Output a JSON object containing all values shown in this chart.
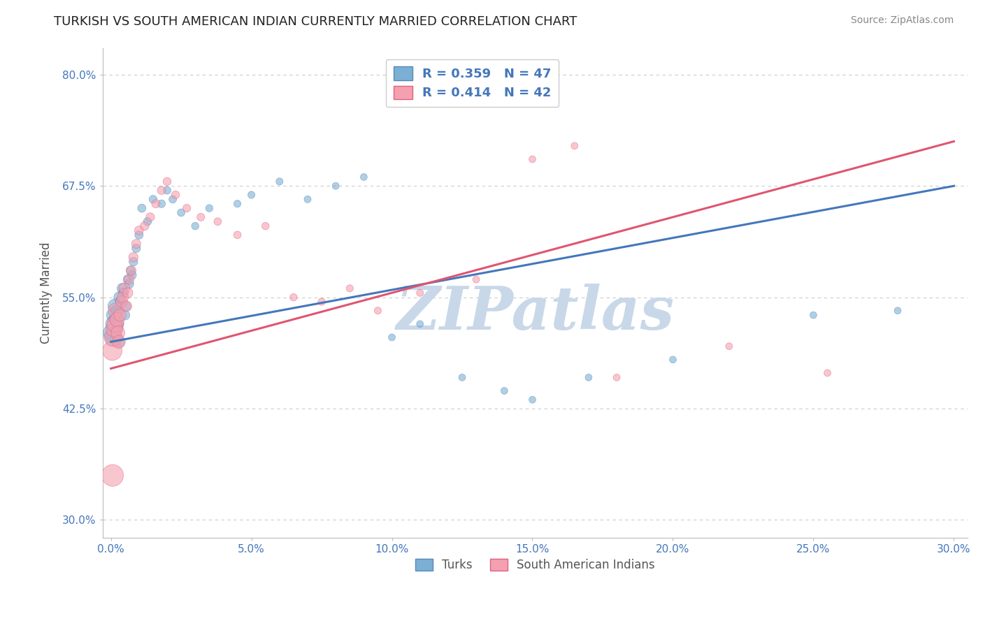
{
  "title": "TURKISH VS SOUTH AMERICAN INDIAN CURRENTLY MARRIED CORRELATION CHART",
  "source": "Source: ZipAtlas.com",
  "xlabel_vals": [
    0.0,
    5.0,
    10.0,
    15.0,
    20.0,
    25.0,
    30.0
  ],
  "ylabel_vals": [
    30.0,
    42.5,
    55.0,
    67.5,
    80.0
  ],
  "xlim": [
    -0.3,
    30.5
  ],
  "ylim": [
    28.0,
    83.0
  ],
  "ylabel": "Currently Married",
  "blue_label": "Turks",
  "pink_label": "South American Indians",
  "blue_R": 0.359,
  "blue_N": 47,
  "pink_R": 0.414,
  "pink_N": 42,
  "blue_color": "#7BAFD4",
  "pink_color": "#F4A0B0",
  "blue_edge_color": "#5588BB",
  "pink_edge_color": "#E06080",
  "blue_line_color": "#4477BB",
  "pink_line_color": "#E05570",
  "watermark": "ZIPatlas",
  "watermark_color": "#C8D8E8",
  "background_color": "#FFFFFF",
  "blue_line_x": [
    0.0,
    30.0
  ],
  "blue_line_y": [
    50.0,
    67.5
  ],
  "pink_line_x": [
    0.0,
    30.0
  ],
  "pink_line_y": [
    47.0,
    72.5
  ],
  "blue_scatter_x": [
    0.05,
    0.08,
    0.1,
    0.12,
    0.15,
    0.18,
    0.2,
    0.22,
    0.25,
    0.28,
    0.3,
    0.35,
    0.4,
    0.45,
    0.5,
    0.55,
    0.6,
    0.65,
    0.7,
    0.75,
    0.8,
    0.9,
    1.0,
    1.1,
    1.3,
    1.5,
    1.8,
    2.0,
    2.2,
    2.5,
    3.0,
    3.5,
    4.5,
    5.0,
    6.0,
    7.0,
    8.0,
    9.0,
    10.0,
    11.0,
    12.5,
    14.0,
    15.0,
    17.0,
    20.0,
    25.0,
    28.0
  ],
  "blue_scatter_y": [
    51.0,
    50.5,
    52.0,
    53.0,
    54.0,
    52.5,
    51.5,
    53.5,
    52.0,
    50.0,
    55.0,
    54.5,
    56.0,
    55.5,
    53.0,
    54.0,
    57.0,
    56.5,
    58.0,
    57.5,
    59.0,
    60.5,
    62.0,
    65.0,
    63.5,
    66.0,
    65.5,
    67.0,
    66.0,
    64.5,
    63.0,
    65.0,
    65.5,
    66.5,
    68.0,
    66.0,
    67.5,
    68.5,
    50.5,
    52.0,
    46.0,
    44.5,
    43.5,
    46.0,
    48.0,
    53.0,
    53.5
  ],
  "blue_scatter_size": [
    350,
    300,
    280,
    250,
    220,
    200,
    180,
    160,
    150,
    140,
    130,
    120,
    110,
    105,
    100,
    95,
    90,
    88,
    85,
    82,
    80,
    78,
    75,
    72,
    70,
    68,
    65,
    63,
    62,
    60,
    58,
    56,
    55,
    54,
    53,
    52,
    51,
    50,
    50,
    50,
    50,
    50,
    50,
    50,
    50,
    50,
    50
  ],
  "pink_scatter_x": [
    0.05,
    0.08,
    0.12,
    0.15,
    0.18,
    0.22,
    0.25,
    0.28,
    0.32,
    0.38,
    0.42,
    0.48,
    0.55,
    0.6,
    0.65,
    0.72,
    0.8,
    0.9,
    1.0,
    1.2,
    1.4,
    1.6,
    1.8,
    2.0,
    2.3,
    2.7,
    3.2,
    3.8,
    4.5,
    5.5,
    6.5,
    7.5,
    8.5,
    9.5,
    11.0,
    13.0,
    15.0,
    16.5,
    18.0,
    22.0,
    25.5,
    0.06
  ],
  "pink_scatter_y": [
    49.0,
    50.5,
    51.5,
    52.0,
    53.5,
    52.5,
    51.0,
    50.0,
    53.0,
    54.5,
    55.0,
    56.0,
    54.0,
    55.5,
    57.0,
    58.0,
    59.5,
    61.0,
    62.5,
    63.0,
    64.0,
    65.5,
    67.0,
    68.0,
    66.5,
    65.0,
    64.0,
    63.5,
    62.0,
    63.0,
    55.0,
    54.5,
    56.0,
    53.5,
    55.5,
    57.0,
    70.5,
    72.0,
    46.0,
    49.5,
    46.5,
    35.0
  ],
  "pink_scatter_size": [
    400,
    350,
    300,
    280,
    250,
    220,
    200,
    180,
    160,
    150,
    140,
    130,
    120,
    110,
    105,
    100,
    95,
    90,
    85,
    80,
    78,
    75,
    72,
    70,
    67,
    65,
    63,
    61,
    60,
    58,
    56,
    55,
    54,
    53,
    52,
    51,
    50,
    50,
    50,
    50,
    50,
    500
  ],
  "title_fontsize": 13,
  "source_fontsize": 10,
  "tick_fontsize": 11,
  "label_fontsize": 12
}
